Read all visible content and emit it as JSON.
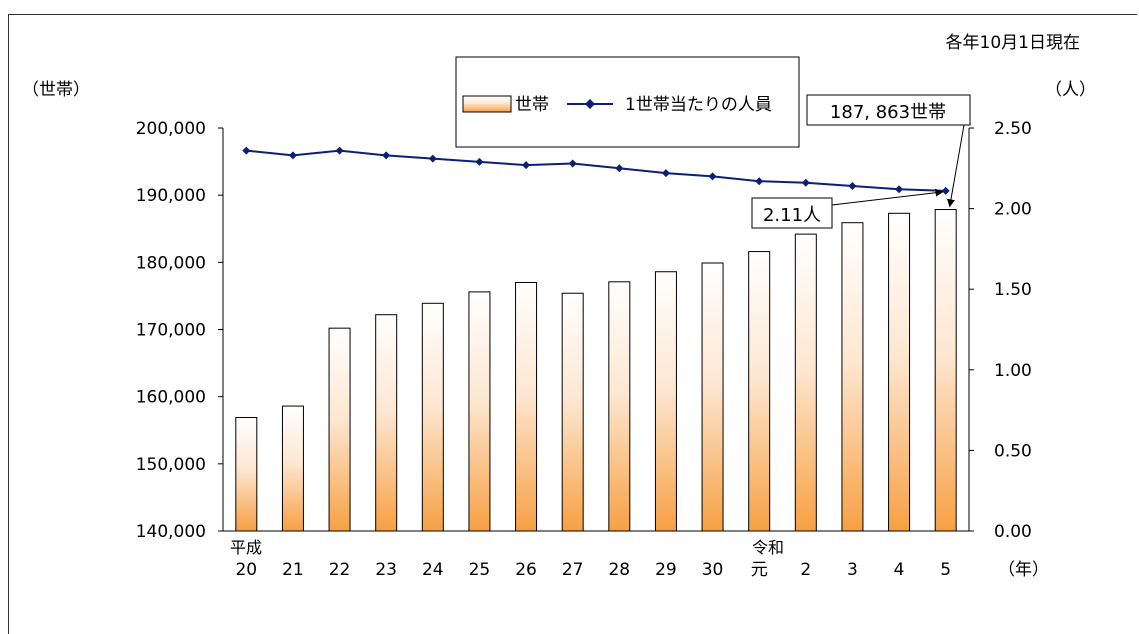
{
  "chart_data": {
    "type": "bar",
    "note_top_right": "各年10月1日現在",
    "ylabel_left": "（世帯）",
    "ylabel_right": "（人）",
    "xlabel_unit": "（年）",
    "era_label_heisei": "平成",
    "era_label_reiwa": "令和",
    "categories": [
      "20",
      "21",
      "22",
      "23",
      "24",
      "25",
      "26",
      "27",
      "28",
      "29",
      "30",
      "元",
      "2",
      "3",
      "4",
      "5"
    ],
    "series": [
      {
        "name": "世帯",
        "axis": "left",
        "values": [
          156900,
          158600,
          170200,
          172200,
          173900,
          175600,
          177000,
          175400,
          177100,
          178600,
          179900,
          181600,
          184200,
          185900,
          187300,
          187863
        ]
      },
      {
        "name": "1世帯当たりの人員",
        "axis": "right",
        "values": [
          2.36,
          2.33,
          2.36,
          2.33,
          2.31,
          2.29,
          2.27,
          2.28,
          2.25,
          2.22,
          2.2,
          2.17,
          2.16,
          2.14,
          2.12,
          2.11
        ]
      }
    ],
    "ylim_left": [
      140000,
      200000
    ],
    "ylim_right": [
      0,
      2.5
    ],
    "yticks_left": [
      "140,000",
      "150,000",
      "160,000",
      "170,000",
      "180,000",
      "190,000",
      "200,000"
    ],
    "yticks_right": [
      "0.00",
      "0.50",
      "1.00",
      "1.50",
      "2.00",
      "2.50"
    ],
    "callouts": {
      "households": "187, 863世帯",
      "persons": "2.11人"
    },
    "colors": {
      "bar_top": "#ffffff",
      "bar_bottom": "#f7a043",
      "line": "#0b1f7a"
    },
    "grid": false,
    "legend_position": "top-center"
  }
}
